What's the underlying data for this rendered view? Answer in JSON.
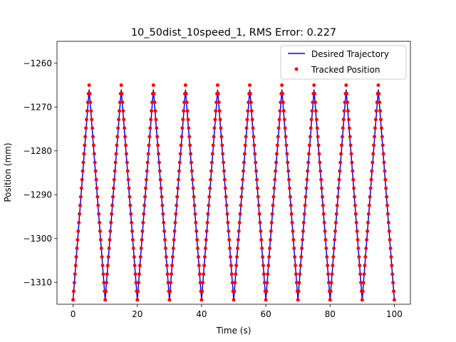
{
  "chart_data": {
    "type": "line",
    "title": "10_50dist_10speed_1, RMS Error: 0.227",
    "xlabel": "Time (s)",
    "ylabel": "Position (mm)",
    "xlim": [
      -5,
      105
    ],
    "ylim": [
      -1315,
      -1255
    ],
    "xticks": [
      0,
      20,
      40,
      60,
      80,
      100
    ],
    "yticks": [
      -1310,
      -1300,
      -1290,
      -1280,
      -1270,
      -1260
    ],
    "xtick_labels": [
      "0",
      "20",
      "40",
      "60",
      "80",
      "100"
    ],
    "ytick_labels": [
      "−1310",
      "−1300",
      "−1290",
      "−1280",
      "−1270",
      "−1260"
    ],
    "legend_position": "upper-right",
    "grid": false,
    "series": [
      {
        "name": "Desired Trajectory",
        "style": "line",
        "color": "#0000ff",
        "x": [
          0,
          5,
          10,
          15,
          20,
          25,
          30,
          35,
          40,
          45,
          50,
          55,
          60,
          65,
          70,
          75,
          80,
          85,
          90,
          95,
          100
        ],
        "y": [
          -1314,
          -1266,
          -1314,
          -1266,
          -1314,
          -1266,
          -1314,
          -1266,
          -1314,
          -1266,
          -1314,
          -1266,
          -1314,
          -1266,
          -1314,
          -1266,
          -1314,
          -1266,
          -1314,
          -1266,
          -1314
        ]
      },
      {
        "name": "Tracked Position",
        "style": "scatter",
        "color": "#ff0000",
        "sampling_interval": 0.2,
        "x_range": [
          0,
          100
        ],
        "trajectory": "triangle wave between -1314 and -1265 with 10 s period"
      }
    ]
  }
}
